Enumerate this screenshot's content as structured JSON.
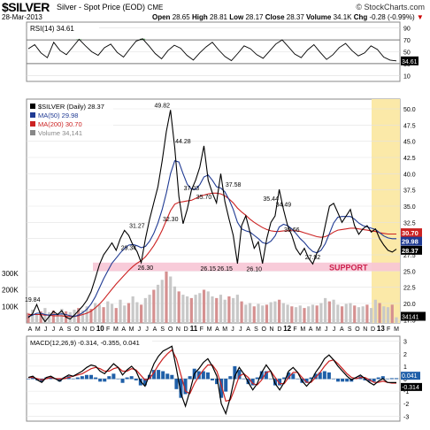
{
  "header": {
    "symbol": "$SILVER",
    "description": "Silver - Spot Price (EOD)",
    "exchange": "CME",
    "date": "28-Mar-2013",
    "open_label": "Open",
    "open": "28.65",
    "high_label": "High",
    "high": "28.81",
    "low_label": "Low",
    "low": "28.17",
    "close_label": "Close",
    "close": "28.37",
    "volume_label": "Volume",
    "volume": "34.1K",
    "chg_label": "Chg",
    "chg": "-0.28 (-0.99%)",
    "chg_arrow": "▼",
    "brand": "© StockCharts.com"
  },
  "colors": {
    "price": "#000000",
    "ma50": "#1f3a93",
    "ma200": "#cc2222",
    "volume": "#c8c8c8",
    "support": "#f7c5d5",
    "highlight": "#fbe9a8",
    "rsi": "#000000",
    "rsi_fill": "#2e7d32",
    "macd": "#000000",
    "signal": "#cc2222",
    "histogram": "#1f5fa8"
  },
  "chart_data": [
    {
      "type": "line",
      "panel": "rsi",
      "legend": "RSI(14) 34.61",
      "yticks": [
        10,
        30,
        50,
        70,
        90
      ],
      "value_label": "34.61",
      "series": [
        {
          "name": "RSI(14)",
          "values": [
            55,
            62,
            48,
            40,
            66,
            52,
            45,
            58,
            71,
            60,
            50,
            44,
            57,
            63,
            49,
            41,
            55,
            68,
            72,
            60,
            47,
            38,
            52,
            61,
            56,
            44,
            36,
            48,
            58,
            66,
            53,
            42,
            35,
            47,
            60,
            55,
            45,
            39,
            51,
            63,
            70,
            58,
            46,
            40,
            53,
            62,
            49,
            37,
            45,
            57,
            64,
            52,
            43,
            48,
            60,
            54,
            41,
            36,
            34.61
          ]
        }
      ]
    },
    {
      "type": "line",
      "panel": "price",
      "title": "$SILVER (Daily) 28.37",
      "legend": [
        "$SILVER (Daily) 28.37",
        "MA(50) 29.98",
        "MA(200) 30.70",
        "Volume 34,141"
      ],
      "x_labels": [
        "A",
        "M",
        "J",
        "J",
        "A",
        "S",
        "O",
        "N",
        "D",
        "10",
        "F",
        "M",
        "A",
        "M",
        "J",
        "J",
        "A",
        "S",
        "O",
        "N",
        "D",
        "11",
        "F",
        "M",
        "A",
        "M",
        "J",
        "J",
        "A",
        "S",
        "O",
        "N",
        "D",
        "12",
        "F",
        "M",
        "A",
        "M",
        "J",
        "J",
        "A",
        "S",
        "O",
        "N",
        "D",
        "13",
        "F",
        "M"
      ],
      "ylim": [
        17,
        51.5
      ],
      "right_axis_ticks": [
        17.5,
        20.0,
        22.5,
        25.0,
        27.5,
        30.0,
        32.5,
        35.0,
        37.5,
        40.0,
        42.5,
        45.0,
        47.5,
        50.0
      ],
      "volume_ticks": [
        "100K",
        "200K",
        "300K"
      ],
      "price_labels": [
        {
          "i": 1,
          "v": "19.84"
        },
        {
          "i": 3,
          "v": "17.19"
        },
        {
          "i": 24,
          "v": "29.34"
        },
        {
          "i": 26,
          "v": "31.27"
        },
        {
          "i": 28,
          "v": "26.30"
        },
        {
          "i": 32,
          "v": "49.82"
        },
        {
          "i": 34,
          "v": "32.30"
        },
        {
          "i": 37,
          "v": "44.28"
        },
        {
          "i": 39,
          "v": "37.03"
        },
        {
          "i": 42,
          "v": "35.70"
        },
        {
          "i": 43,
          "v": "26.15"
        },
        {
          "i": 47,
          "v": "26.15"
        },
        {
          "i": 49,
          "v": "37.58"
        },
        {
          "i": 54,
          "v": "26.10"
        },
        {
          "i": 58,
          "v": "35.44"
        },
        {
          "i": 61,
          "v": "34.49"
        },
        {
          "i": 63,
          "v": "30.66"
        },
        {
          "i": 68,
          "v": "27.92"
        }
      ],
      "support_band": [
        25.0,
        26.3
      ],
      "support_label": "SUPPORT",
      "last_values": {
        "ma200": "30.70",
        "ma50": "29.98",
        "price": "28.37",
        "volume": "34141"
      },
      "series": [
        {
          "name": "$SILVER",
          "values": [
            17.8,
            18.4,
            19.84,
            18.2,
            17.19,
            18.0,
            18.8,
            18.3,
            18.9,
            17.9,
            17.6,
            18.2,
            18.9,
            19.6,
            20.5,
            21.8,
            23.8,
            26.0,
            27.5,
            28.4,
            29.34,
            28.2,
            30.0,
            31.27,
            30.5,
            29.0,
            28.0,
            26.3,
            30.0,
            33.0,
            35.5,
            38.0,
            42.0,
            46.5,
            49.82,
            44.0,
            36.5,
            32.3,
            34.5,
            37.5,
            39.0,
            41.0,
            44.28,
            39.0,
            37.03,
            35.5,
            40.0,
            35.7,
            33.0,
            30.5,
            26.15,
            32.0,
            33.5,
            31.0,
            28.5,
            29.5,
            26.15,
            30.0,
            32.5,
            33.5,
            37.58,
            34.5,
            32.0,
            30.5,
            28.5,
            27.5,
            28.5,
            27.0,
            26.1,
            27.8,
            29.0,
            32.0,
            35.0,
            35.44,
            34.0,
            32.5,
            33.5,
            34.49,
            32.0,
            30.66,
            31.5,
            32.0,
            31.0,
            31.5,
            30.0,
            29.0,
            28.2,
            27.92,
            28.37
          ]
        },
        {
          "name": "MA(50)",
          "values": [
            18.0,
            18.2,
            18.5,
            18.5,
            18.3,
            18.2,
            18.3,
            18.3,
            18.4,
            18.3,
            18.1,
            18.0,
            18.2,
            18.6,
            19.1,
            19.9,
            21.0,
            22.4,
            23.8,
            25.0,
            26.2,
            27.0,
            27.8,
            28.5,
            29.0,
            29.1,
            28.9,
            28.6,
            28.8,
            29.6,
            30.8,
            32.4,
            34.5,
            37.0,
            40.0,
            42.0,
            41.8,
            40.0,
            38.4,
            37.6,
            37.6,
            38.3,
            39.5,
            39.8,
            39.0,
            38.0,
            37.8,
            37.2,
            36.0,
            34.5,
            32.5,
            31.5,
            31.2,
            31.0,
            30.5,
            30.0,
            29.4,
            29.2,
            29.6,
            30.4,
            31.8,
            32.2,
            32.0,
            31.5,
            30.8,
            30.0,
            29.4,
            28.6,
            28.0,
            27.8,
            28.2,
            29.2,
            30.8,
            32.4,
            33.3,
            33.4,
            33.4,
            33.4,
            33.0,
            32.4,
            32.0,
            31.8,
            31.6,
            31.4,
            30.9,
            30.4,
            30.1,
            29.98,
            29.98
          ]
        },
        {
          "name": "MA(200)",
          "values": [
            18.3,
            18.3,
            18.3,
            18.3,
            18.2,
            18.2,
            18.1,
            18.1,
            18.1,
            18.0,
            18.0,
            18.0,
            18.1,
            18.3,
            18.5,
            18.8,
            19.3,
            19.9,
            20.6,
            21.4,
            22.2,
            23.0,
            23.7,
            24.4,
            25.1,
            25.7,
            26.2,
            26.6,
            27.2,
            28.0,
            28.9,
            30.0,
            31.3,
            32.8,
            34.3,
            35.3,
            35.6,
            35.7,
            35.8,
            35.9,
            36.2,
            36.5,
            36.7,
            36.9,
            37.0,
            37.0,
            36.9,
            36.6,
            36.1,
            35.5,
            34.7,
            34.1,
            33.6,
            33.0,
            32.5,
            32.1,
            31.7,
            31.4,
            31.2,
            31.1,
            31.1,
            31.2,
            31.2,
            31.3,
            31.2,
            31.1,
            30.9,
            30.7,
            30.5,
            30.3,
            30.2,
            30.3,
            30.6,
            31.0,
            31.3,
            31.4,
            31.5,
            31.6,
            31.6,
            31.5,
            31.4,
            31.3,
            31.2,
            31.1,
            30.9,
            30.8,
            30.7,
            30.7,
            30.7
          ]
        },
        {
          "name": "Volume",
          "values": [
            60,
            80,
            55,
            70,
            90,
            65,
            75,
            60,
            85,
            70,
            65,
            80,
            90,
            75,
            100,
            85,
            120,
            110,
            95,
            130,
            115,
            90,
            140,
            105,
            120,
            160,
            125,
            110,
            150,
            170,
            200,
            230,
            260,
            310,
            280,
            220,
            190,
            170,
            160,
            150,
            170,
            180,
            200,
            190,
            160,
            150,
            170,
            140,
            160,
            150,
            170,
            130,
            110,
            120,
            100,
            115,
            105,
            110,
            125,
            130,
            140,
            120,
            110,
            100,
            95,
            105,
            90,
            100,
            110,
            105,
            120,
            150,
            130,
            140,
            110,
            100,
            115,
            120,
            105,
            95,
            100,
            110,
            90,
            140,
            120,
            100,
            95,
            110,
            34.141
          ]
        }
      ]
    },
    {
      "type": "line",
      "panel": "macd",
      "legend": "MACD(12,26,9) -0.314, -0.355, 0.041",
      "yticks": [
        -3,
        -2,
        -1,
        0,
        1,
        2,
        3
      ],
      "value_labels": [
        "0.041",
        "-0.314"
      ],
      "series": [
        {
          "name": "MACD",
          "values": [
            0.1,
            0.2,
            -0.1,
            -0.3,
            0.1,
            0.2,
            0.0,
            -0.2,
            0.1,
            0.3,
            0.2,
            0.4,
            0.6,
            0.9,
            1.1,
            1.0,
            0.6,
            0.4,
            0.8,
            1.2,
            0.9,
            0.3,
            0.7,
            1.0,
            0.6,
            -0.2,
            -0.6,
            0.3,
            1.2,
            1.8,
            2.2,
            2.4,
            2.6,
            0.8,
            -1.2,
            -2.2,
            -1.0,
            0.4,
            0.8,
            1.3,
            1.6,
            1.0,
            0.2,
            -2.0,
            -2.8,
            -1.5,
            0.2,
            0.9,
            0.4,
            -0.3,
            -0.9,
            -0.4,
            0.5,
            1.1,
            0.6,
            -0.4,
            -0.9,
            -0.3,
            0.6,
            0.9,
            0.5,
            -0.2,
            -0.6,
            -0.2,
            0.5,
            1.0,
            1.6,
            1.9,
            1.5,
            1.0,
            0.6,
            0.2,
            -0.1,
            0.1,
            0.3,
            0.0,
            -0.3,
            -0.5,
            -0.2,
            0.0,
            -0.3,
            -0.314,
            -0.314
          ]
        },
        {
          "name": "Signal",
          "values": [
            0.1,
            0.1,
            0.0,
            -0.1,
            0.0,
            0.1,
            0.0,
            0.0,
            0.0,
            0.1,
            0.2,
            0.3,
            0.4,
            0.6,
            0.8,
            0.9,
            0.8,
            0.6,
            0.6,
            0.8,
            0.9,
            0.6,
            0.6,
            0.8,
            0.7,
            0.3,
            -0.1,
            0.0,
            0.5,
            1.1,
            1.6,
            2.0,
            2.3,
            1.6,
            0.3,
            -1.0,
            -1.2,
            -0.4,
            0.2,
            0.7,
            1.1,
            1.1,
            0.6,
            -0.5,
            -1.8,
            -1.7,
            -0.8,
            0.2,
            0.4,
            0.1,
            -0.4,
            -0.5,
            -0.1,
            0.5,
            0.6,
            0.1,
            -0.4,
            -0.4,
            0.1,
            0.5,
            0.5,
            0.1,
            -0.3,
            -0.3,
            0.1,
            0.5,
            1.0,
            1.4,
            1.5,
            1.2,
            0.8,
            0.4,
            0.1,
            0.0,
            0.1,
            0.1,
            -0.1,
            -0.3,
            -0.3,
            -0.2,
            -0.3,
            -0.355,
            -0.355
          ]
        }
      ]
    }
  ]
}
